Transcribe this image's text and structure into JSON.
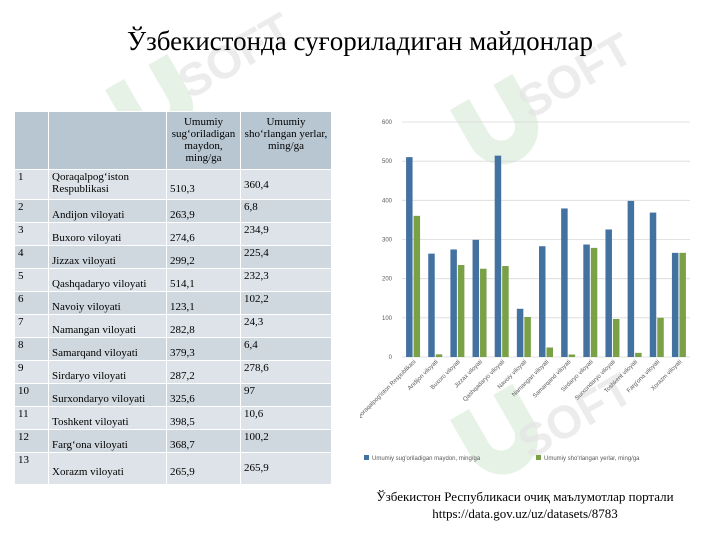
{
  "title": "Ўзбекистонда суғориладиган майдонлар",
  "table": {
    "headers": [
      "",
      "",
      "Umumiy sug‘oriladigan maydon, ming/ga",
      "Umumiy sho‘rlangan yerlar, ming/ga"
    ],
    "rows": [
      {
        "n": "1",
        "region": "Qoraqalpog‘iston Respublikasi",
        "irrigated": "510,3",
        "saline": "360,4"
      },
      {
        "n": "2",
        "region": "Andijon viloyati",
        "irrigated": "263,9",
        "saline": "6,8"
      },
      {
        "n": "3",
        "region": "Buxoro viloyati",
        "irrigated": "274,6",
        "saline": "234,9"
      },
      {
        "n": "4",
        "region": "Jizzax viloyati",
        "irrigated": "299,2",
        "saline": "225,4"
      },
      {
        "n": "5",
        "region": "Qashqadaryo viloyati",
        "irrigated": "514,1",
        "saline": "232,3"
      },
      {
        "n": "6",
        "region": "Navoiy viloyati",
        "irrigated": "123,1",
        "saline": "102,2"
      },
      {
        "n": "7",
        "region": "Namangan viloyati",
        "irrigated": "282,8",
        "saline": "24,3"
      },
      {
        "n": "8",
        "region": "Samarqand viloyati",
        "irrigated": "379,3",
        "saline": "6,4"
      },
      {
        "n": "9",
        "region": "Sirdaryo viloyati",
        "irrigated": "287,2",
        "saline": "278,6"
      },
      {
        "n": "10",
        "region": "Surxondaryo viloyati",
        "irrigated": "325,6",
        "saline": "97"
      },
      {
        "n": "11",
        "region": "Toshkent viloyati",
        "irrigated": "398,5",
        "saline": "10,6"
      },
      {
        "n": "12",
        "region": "Farg‘ona viloyati",
        "irrigated": "368,7",
        "saline": "100,2"
      },
      {
        "n": "13",
        "region": "Xorazm viloyati",
        "irrigated": "265,9",
        "saline": "265,9"
      }
    ]
  },
  "chart_data": {
    "type": "bar",
    "categories": [
      "Qoraqalpog'iston Respublikasi",
      "Andijon viloyati",
      "Buxoro viloyati",
      "Jizzax viloyati",
      "Qashqadaryo viloyati",
      "Navoiy viloyati",
      "Namangan viloyati",
      "Samarqand viloyati",
      "Sirdaryo viloyati",
      "Surxondaryo viloyati",
      "Toshkent viloyati",
      "Farg'ona viloyati",
      "Xorazm viloyati"
    ],
    "series": [
      {
        "name": "Umumiy sug'oriladigan  maydon, ming/ga",
        "color": "#4472a0",
        "values": [
          510.3,
          263.9,
          274.6,
          299.2,
          514.1,
          123.1,
          282.8,
          379.3,
          287.2,
          325.6,
          398.5,
          368.7,
          265.9
        ]
      },
      {
        "name": "Umumiy sho'rlangan yerlar, ming/ga",
        "color": "#7aa146",
        "values": [
          360.4,
          6.8,
          234.9,
          225.4,
          232.3,
          102.2,
          24.3,
          6.4,
          278.6,
          97,
          10.6,
          100.2,
          265.9
        ]
      }
    ],
    "yticks": [
      "0",
      "100",
      "200",
      "300",
      "400",
      "500",
      "600"
    ],
    "ylim": [
      0,
      600
    ],
    "grid": true,
    "legend": "bottom"
  },
  "source": {
    "line1": "Ўзбекистон Республикаси очиқ маълумотлар портали",
    "line2": "https://data.gov.uz/uz/datasets/8783"
  }
}
